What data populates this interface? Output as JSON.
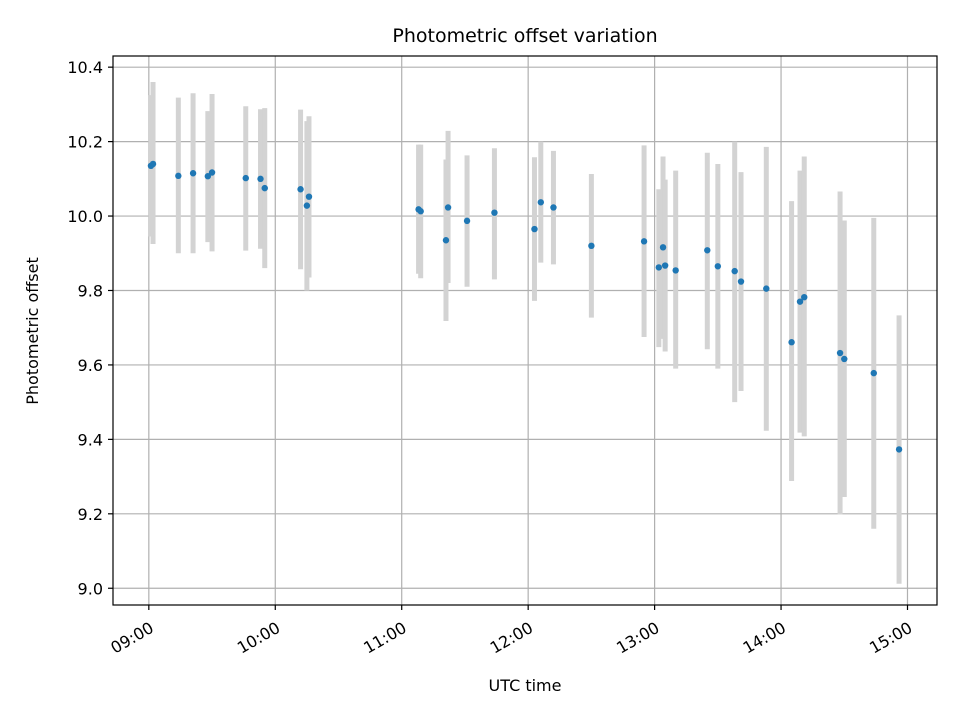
{
  "chart_data": {
    "type": "scatter",
    "title": "Photometric offset variation",
    "xlabel": "UTC time",
    "ylabel": "Photometric offset",
    "xlim": [
      "08:43",
      "15:14"
    ],
    "ylim": [
      8.955,
      10.43
    ],
    "x_ticks": [
      "09:00",
      "10:00",
      "11:00",
      "12:00",
      "13:00",
      "14:00",
      "15:00"
    ],
    "y_ticks": [
      "9.0",
      "9.2",
      "9.4",
      "9.6",
      "9.8",
      "10.0",
      "10.2",
      "10.4"
    ],
    "grid": true,
    "colors": {
      "points": "#1f77b4",
      "errorbars": "#d3d3d3",
      "grid": "#b0b0b0"
    },
    "points": [
      {
        "x": "09:01",
        "y": 10.135,
        "lo": 9.945,
        "hi": 10.325
      },
      {
        "x": "09:02",
        "y": 10.14,
        "lo": 9.925,
        "hi": 10.36
      },
      {
        "x": "09:14",
        "y": 10.108,
        "lo": 9.9,
        "hi": 10.318
      },
      {
        "x": "09:21",
        "y": 10.115,
        "lo": 9.9,
        "hi": 10.33
      },
      {
        "x": "09:28",
        "y": 10.107,
        "lo": 9.93,
        "hi": 10.282
      },
      {
        "x": "09:30",
        "y": 10.117,
        "lo": 9.905,
        "hi": 10.328
      },
      {
        "x": "09:46",
        "y": 10.102,
        "lo": 9.907,
        "hi": 10.295
      },
      {
        "x": "09:53",
        "y": 10.1,
        "lo": 9.912,
        "hi": 10.287
      },
      {
        "x": "09:55",
        "y": 10.075,
        "lo": 9.86,
        "hi": 10.29
      },
      {
        "x": "10:12",
        "y": 10.072,
        "lo": 9.857,
        "hi": 10.286
      },
      {
        "x": "10:15",
        "y": 10.028,
        "lo": 9.8,
        "hi": 10.255
      },
      {
        "x": "10:16",
        "y": 10.052,
        "lo": 9.835,
        "hi": 10.268
      },
      {
        "x": "11:08",
        "y": 10.018,
        "lo": 9.845,
        "hi": 10.192
      },
      {
        "x": "11:09",
        "y": 10.013,
        "lo": 9.833,
        "hi": 10.192
      },
      {
        "x": "11:21",
        "y": 9.935,
        "lo": 9.718,
        "hi": 10.152
      },
      {
        "x": "11:22",
        "y": 10.023,
        "lo": 9.82,
        "hi": 10.229
      },
      {
        "x": "11:31",
        "y": 9.987,
        "lo": 9.81,
        "hi": 10.163
      },
      {
        "x": "11:44",
        "y": 10.009,
        "lo": 9.83,
        "hi": 10.182
      },
      {
        "x": "12:03",
        "y": 9.965,
        "lo": 9.772,
        "hi": 10.158
      },
      {
        "x": "12:06",
        "y": 10.037,
        "lo": 9.875,
        "hi": 10.2
      },
      {
        "x": "12:12",
        "y": 10.023,
        "lo": 9.87,
        "hi": 10.175
      },
      {
        "x": "12:30",
        "y": 9.92,
        "lo": 9.727,
        "hi": 10.113
      },
      {
        "x": "12:55",
        "y": 9.932,
        "lo": 9.675,
        "hi": 10.19
      },
      {
        "x": "13:02",
        "y": 9.862,
        "lo": 9.648,
        "hi": 10.072
      },
      {
        "x": "13:04",
        "y": 9.916,
        "lo": 9.67,
        "hi": 10.16
      },
      {
        "x": "13:05",
        "y": 9.867,
        "lo": 9.636,
        "hi": 10.098
      },
      {
        "x": "13:10",
        "y": 9.854,
        "lo": 9.59,
        "hi": 10.122
      },
      {
        "x": "13:25",
        "y": 9.908,
        "lo": 9.642,
        "hi": 10.17
      },
      {
        "x": "13:30",
        "y": 9.865,
        "lo": 9.59,
        "hi": 10.14
      },
      {
        "x": "13:38",
        "y": 9.852,
        "lo": 9.5,
        "hi": 10.2
      },
      {
        "x": "13:41",
        "y": 9.824,
        "lo": 9.53,
        "hi": 10.118
      },
      {
        "x": "13:53",
        "y": 9.805,
        "lo": 9.423,
        "hi": 10.186
      },
      {
        "x": "14:05",
        "y": 9.661,
        "lo": 9.288,
        "hi": 10.04
      },
      {
        "x": "14:09",
        "y": 9.77,
        "lo": 9.418,
        "hi": 10.122
      },
      {
        "x": "14:11",
        "y": 9.782,
        "lo": 9.408,
        "hi": 10.16
      },
      {
        "x": "14:28",
        "y": 9.632,
        "lo": 9.198,
        "hi": 10.066
      },
      {
        "x": "14:30",
        "y": 9.616,
        "lo": 9.245,
        "hi": 9.988
      },
      {
        "x": "14:44",
        "y": 9.578,
        "lo": 9.16,
        "hi": 9.995
      },
      {
        "x": "14:56",
        "y": 9.373,
        "lo": 9.012,
        "hi": 9.733
      }
    ]
  }
}
